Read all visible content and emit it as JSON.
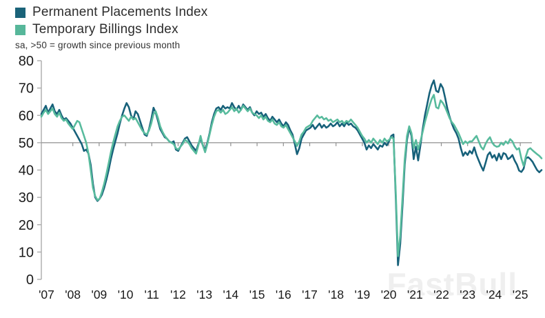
{
  "legend": {
    "items": [
      {
        "label": "Permanent Placements Index",
        "color": "#1A6379"
      },
      {
        "label": "Temporary Billings Index",
        "color": "#57B79A"
      }
    ]
  },
  "subtitle": "sa, >50 = growth since previous month",
  "watermark": "FastBull",
  "colors": {
    "permanent_line": "#17617A",
    "temporary_line": "#58BB9D",
    "y_axis": "#ababab",
    "baseline": "#8f8f8f",
    "tick_text": "#1a1a1a"
  },
  "chart_data": {
    "type": "line",
    "title": "",
    "xlabel": "",
    "ylabel": "",
    "ylim": [
      0,
      80
    ],
    "y_ticks": [
      0,
      10,
      20,
      30,
      40,
      50,
      60,
      70,
      80
    ],
    "x_tick_labels": [
      "'07",
      "'08",
      "'09",
      "'10",
      "'11",
      "'12",
      "'13",
      "'14",
      "'15",
      "'16",
      "'17",
      "'18",
      "'19",
      "'20",
      "'21",
      "'22",
      "'23",
      "'24",
      "'25"
    ],
    "baseline_value": 50,
    "grid": "only horizontal rule at 50",
    "legend_position": "top-left",
    "frequency": "monthly",
    "x_start": "2007-01",
    "x_end": "2025-08",
    "series": [
      {
        "name": "Permanent Placements Index",
        "color": "#17617A",
        "values_by_year": {
          "2007": [
            60.5,
            62,
            63.5,
            61,
            62.5,
            64,
            61.5,
            60.5,
            62,
            60,
            58.5,
            59
          ],
          "2008": [
            58,
            57,
            55.5,
            54,
            52.5,
            51,
            49.5,
            47,
            47.5,
            46,
            42,
            35
          ],
          "2009": [
            30,
            28.7,
            29.5,
            31,
            33.5,
            36.5,
            40,
            44,
            47.5,
            50.5,
            53.5,
            57
          ],
          "2010": [
            60,
            62.5,
            64.5,
            63,
            60,
            58.5,
            61.5,
            60.5,
            58,
            55.5,
            53,
            52.5
          ],
          "2011": [
            55,
            58.5,
            62.8,
            61,
            58,
            55,
            53.5,
            52,
            51.5,
            50.5,
            50,
            50.5
          ],
          "2012": [
            47.5,
            47,
            48.5,
            50,
            51.5,
            52,
            50.5,
            49,
            48,
            47,
            49.5,
            51.5
          ],
          "2013": [
            49,
            47.5,
            50,
            53.5,
            57.5,
            60.5,
            62.5,
            63,
            62,
            63.5,
            62.5,
            63
          ],
          "2014": [
            62.5,
            64.5,
            63,
            62,
            63.5,
            62,
            64,
            63,
            62,
            63,
            61,
            60
          ],
          "2015": [
            61.5,
            60.5,
            61,
            59.5,
            60.5,
            59,
            58,
            59.5,
            58.5,
            57.5,
            58.5,
            57
          ],
          "2016": [
            56,
            57.5,
            56.5,
            54.5,
            53,
            49.5,
            45.8,
            48,
            51.5,
            53,
            54.5,
            55
          ],
          "2017": [
            55.5,
            56.5,
            55,
            56,
            57,
            55.5,
            56.5,
            55.5,
            56,
            57,
            56,
            56.5
          ],
          "2018": [
            57.5,
            56,
            57,
            56,
            57.5,
            56.5,
            57,
            56,
            55.5,
            54.5,
            53,
            51.5
          ],
          "2019": [
            50,
            47.5,
            49,
            48,
            49.5,
            48.5,
            47.5,
            49,
            48.5,
            50,
            49,
            50.5
          ],
          "2020": [
            52.5,
            53,
            30,
            5.2,
            13,
            27,
            42,
            51,
            55.5,
            52.5,
            44,
            48.5
          ],
          "2021": [
            43.5,
            49,
            55,
            60,
            64,
            68,
            71,
            72.8,
            69,
            68.5,
            71.5,
            70
          ],
          "2022": [
            66.5,
            62.5,
            59.5,
            57,
            55,
            53.5,
            51.5,
            48,
            45.2,
            46.5,
            45.5,
            47
          ],
          "2023": [
            46,
            48.3,
            45.5,
            43.5,
            41.5,
            39.8,
            42.5,
            45.5,
            46.5,
            44.5,
            45.5,
            43.5
          ],
          "2024": [
            46,
            44,
            46.2,
            45.8,
            44,
            44.5,
            45.5,
            43.5,
            42,
            39.8,
            39.3,
            40.5
          ],
          "2025": [
            44.3,
            44.7,
            44,
            43,
            41.5,
            40,
            39.2,
            40
          ]
        }
      },
      {
        "name": "Temporary Billings Index",
        "color": "#58BB9D",
        "values_by_year": {
          "2007": [
            59.5,
            61,
            62,
            60.5,
            61.5,
            62.5,
            60.5,
            59.5,
            61,
            59,
            58,
            58.5
          ],
          "2008": [
            57,
            56,
            55,
            56.5,
            58,
            57.5,
            55,
            52.5,
            50,
            46,
            40,
            33.5
          ],
          "2009": [
            30.5,
            29,
            29.5,
            32,
            35,
            38.5,
            42.5,
            46.5,
            50,
            53,
            56,
            58
          ],
          "2010": [
            59.5,
            60,
            59,
            58,
            59.5,
            58.5,
            59,
            57.5,
            56,
            54.5,
            53.5,
            53
          ],
          "2011": [
            54.5,
            57,
            60.5,
            61.5,
            59,
            56,
            54,
            52.5,
            51.5,
            50.5,
            50,
            49.5
          ],
          "2012": [
            48,
            47.5,
            48.5,
            49.5,
            51,
            50.5,
            49.5,
            48,
            47,
            46,
            49,
            52.5
          ],
          "2013": [
            49,
            46.5,
            49.5,
            53,
            56.5,
            59.5,
            61.5,
            62,
            61,
            62,
            60.5,
            61
          ],
          "2014": [
            62,
            63,
            61.5,
            62.5,
            61,
            62,
            63.5,
            62.5,
            61.5,
            62.5,
            61,
            60.5
          ],
          "2015": [
            60,
            59,
            60,
            58.5,
            59.5,
            58,
            57.5,
            58.5,
            57,
            56.5,
            57.5,
            56
          ],
          "2016": [
            55.5,
            56.5,
            55,
            53.5,
            52,
            50.5,
            48.8,
            50.5,
            53,
            54,
            55.5,
            56
          ],
          "2017": [
            56.5,
            58,
            59,
            60,
            59,
            59.5,
            58.5,
            59,
            58,
            58.5,
            57.5,
            58
          ],
          "2018": [
            58.5,
            57.5,
            58,
            57,
            58,
            57.5,
            58.5,
            57.5,
            56.5,
            55.5,
            54,
            52.5
          ],
          "2019": [
            51.5,
            50,
            51,
            50,
            51.5,
            50.5,
            49.5,
            51,
            50,
            51.5,
            50.5,
            51
          ],
          "2020": [
            52,
            51.5,
            32,
            8.5,
            16,
            30,
            44,
            52.5,
            56,
            53.5,
            48,
            51
          ],
          "2021": [
            47.5,
            50.5,
            54,
            57.5,
            60.5,
            63.5,
            66,
            67.5,
            63,
            62.5,
            65.5,
            64.5
          ],
          "2022": [
            63,
            61,
            59,
            57.5,
            56.5,
            55,
            53.5,
            51.5,
            49.5,
            50.5,
            49.8,
            50.5
          ],
          "2023": [
            50.5,
            51.5,
            52.5,
            50.5,
            48.5,
            47.5,
            49.5,
            51,
            52,
            50,
            49,
            48.5
          ],
          "2024": [
            48.7,
            50,
            49.2,
            50.5,
            49.7,
            51.3,
            50.5,
            48.7,
            47.5,
            48,
            44.2,
            41.5
          ],
          "2025": [
            45,
            47.5,
            48,
            47.2,
            46.5,
            45.8,
            45.2,
            44.3
          ]
        }
      }
    ]
  }
}
